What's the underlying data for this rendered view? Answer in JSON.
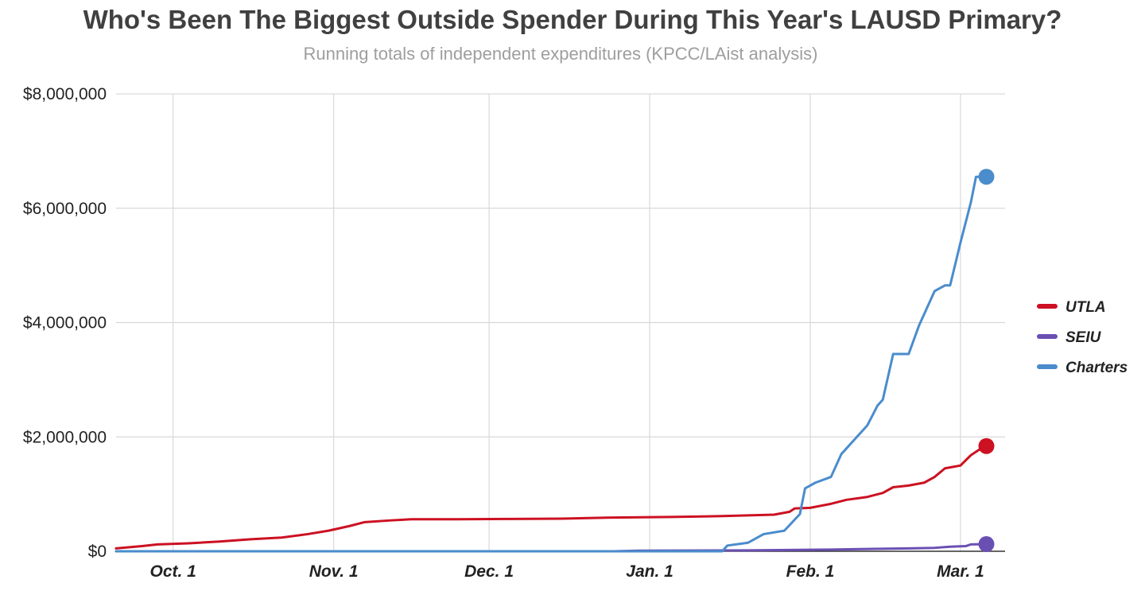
{
  "chart_data": {
    "type": "line",
    "title": "Who's Been The Biggest Outside Spender During This Year's LAUSD Primary?",
    "subtitle": "Running totals of independent expenditures (KPCC/LAist analysis)",
    "xlabel": "",
    "ylabel": "",
    "x_range": [
      "2019-09-20",
      "2020-03-05"
    ],
    "ylim": [
      0,
      8000000
    ],
    "y_ticks": [
      {
        "value": 0,
        "label": "$0"
      },
      {
        "value": 2000000,
        "label": "$2,000,000"
      },
      {
        "value": 4000000,
        "label": "$4,000,000"
      },
      {
        "value": 6000000,
        "label": "$6,000,000"
      },
      {
        "value": 8000000,
        "label": "$8,000,000"
      }
    ],
    "x_ticks": [
      {
        "date": "2019-10-01",
        "label": "Oct. 1"
      },
      {
        "date": "2019-11-01",
        "label": "Nov. 1"
      },
      {
        "date": "2019-12-01",
        "label": "Dec. 1"
      },
      {
        "date": "2020-01-01",
        "label": "Jan. 1"
      },
      {
        "date": "2020-02-01",
        "label": "Feb. 1"
      },
      {
        "date": "2020-03-01",
        "label": "Mar. 1"
      }
    ],
    "grid": true,
    "legend_position": "right",
    "series": [
      {
        "name": "UTLA",
        "color": "#cc1122",
        "end_marker": true,
        "points": [
          [
            "2019-09-20",
            50000
          ],
          [
            "2019-09-25",
            90000
          ],
          [
            "2019-09-28",
            120000
          ],
          [
            "2019-10-04",
            140000
          ],
          [
            "2019-10-10",
            170000
          ],
          [
            "2019-10-16",
            210000
          ],
          [
            "2019-10-22",
            240000
          ],
          [
            "2019-10-27",
            300000
          ],
          [
            "2019-10-31",
            360000
          ],
          [
            "2019-11-04",
            440000
          ],
          [
            "2019-11-07",
            510000
          ],
          [
            "2019-11-12",
            540000
          ],
          [
            "2019-11-16",
            560000
          ],
          [
            "2019-11-25",
            560000
          ],
          [
            "2019-12-05",
            565000
          ],
          [
            "2019-12-15",
            570000
          ],
          [
            "2019-12-25",
            590000
          ],
          [
            "2020-01-05",
            600000
          ],
          [
            "2020-01-15",
            615000
          ],
          [
            "2020-01-25",
            640000
          ],
          [
            "2020-01-28",
            690000
          ],
          [
            "2020-01-29",
            750000
          ],
          [
            "2020-02-01",
            760000
          ],
          [
            "2020-02-05",
            830000
          ],
          [
            "2020-02-08",
            900000
          ],
          [
            "2020-02-12",
            950000
          ],
          [
            "2020-02-15",
            1020000
          ],
          [
            "2020-02-17",
            1120000
          ],
          [
            "2020-02-20",
            1150000
          ],
          [
            "2020-02-23",
            1200000
          ],
          [
            "2020-02-25",
            1300000
          ],
          [
            "2020-02-27",
            1450000
          ],
          [
            "2020-03-01",
            1500000
          ],
          [
            "2020-03-03",
            1680000
          ],
          [
            "2020-03-05",
            1800000
          ],
          [
            "2020-03-06",
            1840000
          ]
        ]
      },
      {
        "name": "SEIU",
        "color": "#6a4fb3",
        "end_marker": true,
        "points": [
          [
            "2019-09-20",
            0
          ],
          [
            "2019-12-25",
            0
          ],
          [
            "2019-12-30",
            10000
          ],
          [
            "2020-01-20",
            15000
          ],
          [
            "2020-02-05",
            30000
          ],
          [
            "2020-02-12",
            40000
          ],
          [
            "2020-02-20",
            50000
          ],
          [
            "2020-02-25",
            60000
          ],
          [
            "2020-02-28",
            80000
          ],
          [
            "2020-03-02",
            90000
          ],
          [
            "2020-03-03",
            120000
          ],
          [
            "2020-03-06",
            125000
          ]
        ]
      },
      {
        "name": "Charters",
        "color": "#4a8ccc",
        "end_marker": true,
        "points": [
          [
            "2019-09-20",
            0
          ],
          [
            "2020-01-15",
            0
          ],
          [
            "2020-01-16",
            100000
          ],
          [
            "2020-01-20",
            150000
          ],
          [
            "2020-01-23",
            300000
          ],
          [
            "2020-01-27",
            360000
          ],
          [
            "2020-01-30",
            650000
          ],
          [
            "2020-01-31",
            1100000
          ],
          [
            "2020-02-02",
            1200000
          ],
          [
            "2020-02-05",
            1300000
          ],
          [
            "2020-02-07",
            1700000
          ],
          [
            "2020-02-10",
            2000000
          ],
          [
            "2020-02-12",
            2200000
          ],
          [
            "2020-02-14",
            2550000
          ],
          [
            "2020-02-15",
            2650000
          ],
          [
            "2020-02-17",
            3450000
          ],
          [
            "2020-02-20",
            3450000
          ],
          [
            "2020-02-22",
            3950000
          ],
          [
            "2020-02-23",
            4150000
          ],
          [
            "2020-02-25",
            4550000
          ],
          [
            "2020-02-27",
            4650000
          ],
          [
            "2020-02-28",
            4650000
          ],
          [
            "2020-03-01",
            5400000
          ],
          [
            "2020-03-03",
            6100000
          ],
          [
            "2020-03-04",
            6550000
          ],
          [
            "2020-03-06",
            6550000
          ]
        ]
      }
    ]
  }
}
